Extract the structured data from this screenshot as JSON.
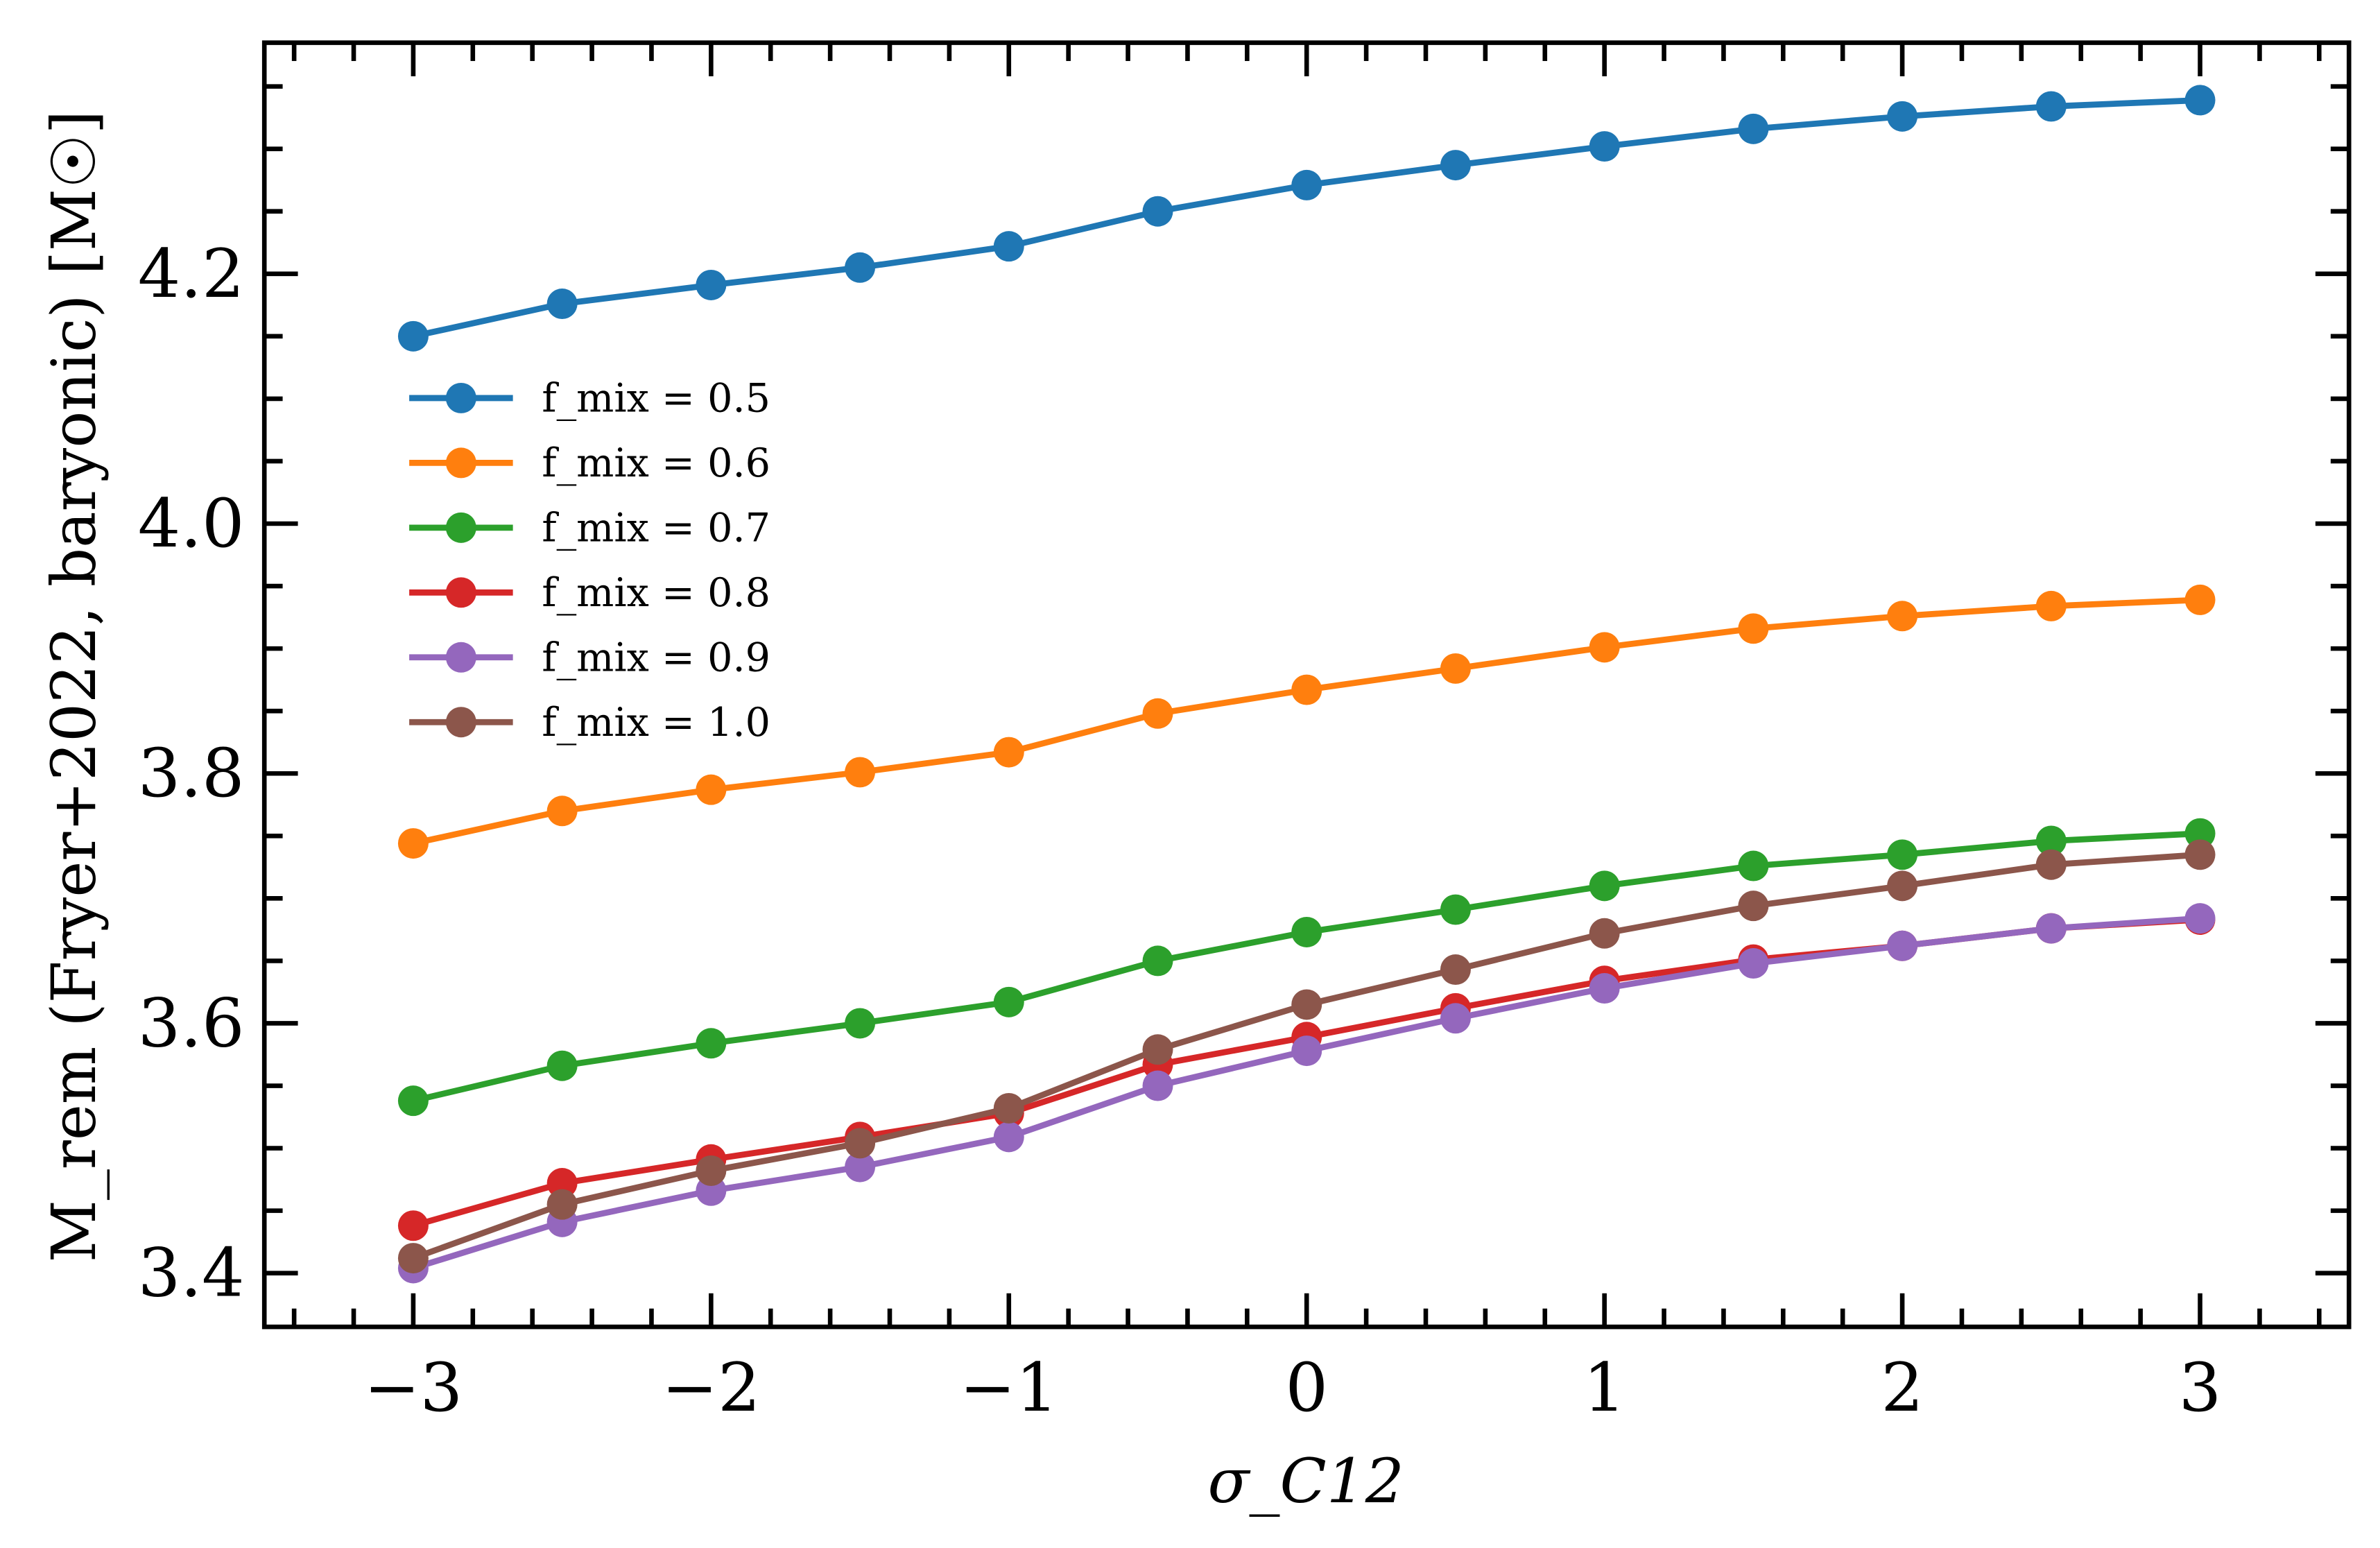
{
  "chart_data": {
    "type": "line",
    "xlabel": "σ_C12",
    "ylabel": "M_rem (Fryer+2022, baryonic) [M☉]",
    "xlim": [
      -3.5,
      3.5
    ],
    "ylim": [
      3.357,
      4.385
    ],
    "xticks": [
      -3,
      -2,
      -1,
      0,
      1,
      2,
      3
    ],
    "xtick_labels": [
      "−3",
      "−2",
      "−1",
      "0",
      "1",
      "2",
      "3"
    ],
    "yticks": [
      3.4,
      3.6,
      3.8,
      4.0,
      4.2
    ],
    "ytick_labels": [
      "3.4",
      "3.6",
      "3.8",
      "4.0",
      "4.2"
    ],
    "grid": false,
    "legend_position": "upper-left",
    "x": [
      -3,
      -2.5,
      -2,
      -1.5,
      -1,
      -0.5,
      0,
      0.5,
      1,
      1.5,
      2,
      2.5,
      3
    ],
    "series": [
      {
        "name": "f_mix = 0.5",
        "color": "#1f77b4",
        "values": [
          4.15,
          4.176,
          4.191,
          4.205,
          4.222,
          4.25,
          4.271,
          4.287,
          4.302,
          4.316,
          4.326,
          4.334,
          4.339
        ]
      },
      {
        "name": "f_mix = 0.6",
        "color": "#ff7f0e",
        "values": [
          3.744,
          3.77,
          3.787,
          3.801,
          3.817,
          3.848,
          3.867,
          3.884,
          3.901,
          3.916,
          3.926,
          3.934,
          3.939
        ]
      },
      {
        "name": "f_mix = 0.7",
        "color": "#2ca02c",
        "values": [
          3.538,
          3.566,
          3.584,
          3.6,
          3.617,
          3.65,
          3.673,
          3.691,
          3.71,
          3.726,
          3.735,
          3.746,
          3.752
        ]
      },
      {
        "name": "f_mix = 0.8",
        "color": "#d62728",
        "values": [
          3.438,
          3.472,
          3.491,
          3.509,
          3.528,
          3.567,
          3.589,
          3.612,
          3.634,
          3.651,
          3.662,
          3.676,
          3.683
        ]
      },
      {
        "name": "f_mix = 0.9",
        "color": "#9467bd",
        "values": [
          3.404,
          3.441,
          3.466,
          3.485,
          3.509,
          3.55,
          3.578,
          3.604,
          3.628,
          3.648,
          3.662,
          3.676,
          3.684
        ]
      },
      {
        "name": "f_mix = 1.0",
        "color": "#8c564b",
        "values": [
          3.412,
          3.455,
          3.482,
          3.504,
          3.532,
          3.579,
          3.615,
          3.643,
          3.672,
          3.694,
          3.71,
          3.727,
          3.735
        ]
      }
    ]
  }
}
